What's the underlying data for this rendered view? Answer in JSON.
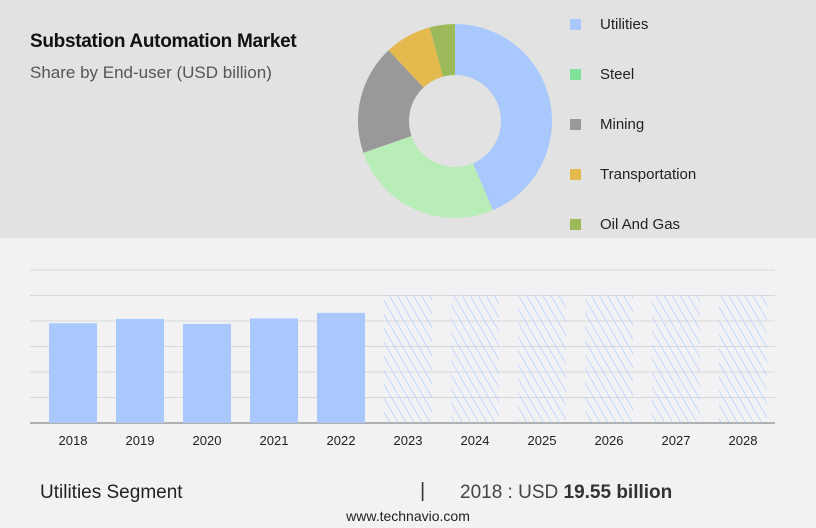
{
  "header": {
    "title": "Substation Automation Market",
    "subtitle": "Share by End-user (USD billion)"
  },
  "chart_data": [
    {
      "type": "pie",
      "donut": true,
      "title": "Share by End-user (USD billion)",
      "categories": [
        "Utilities",
        "Steel",
        "Mining",
        "Transportation",
        "Oil And Gas"
      ],
      "values": [
        43.6,
        26.1,
        18.3,
        7.8,
        4.2
      ],
      "unit": "percent (estimated)",
      "colors": [
        "#a8c8ff",
        "#b8edb8",
        "#999999",
        "#e4b94e",
        "#9cba5a"
      ],
      "legend_colors": [
        "#a8c8ff",
        "#7ee29a",
        "#999999",
        "#e4b94e",
        "#9cba5a"
      ],
      "legend_position": "right"
    },
    {
      "type": "bar",
      "title": "Utilities Segment",
      "categories": [
        "2018",
        "2019",
        "2020",
        "2021",
        "2022",
        "2023",
        "2024",
        "2025",
        "2026",
        "2027",
        "2028"
      ],
      "values": [
        19.55,
        20.4,
        19.45,
        20.5,
        21.6,
        null,
        null,
        null,
        null,
        null,
        null
      ],
      "forecast_placeholder_value": 25,
      "forecast_from": "2023",
      "ylim": [
        0,
        30
      ],
      "grid_step": 5,
      "grid": true,
      "xlabel": "",
      "ylabel": "",
      "bar_color": "#a8c8ff"
    }
  ],
  "footer": {
    "segment": "Utilities Segment",
    "separator": "|",
    "year_label": "2018 : USD ",
    "value": "19.55 billion",
    "website": "www.technavio.com"
  }
}
